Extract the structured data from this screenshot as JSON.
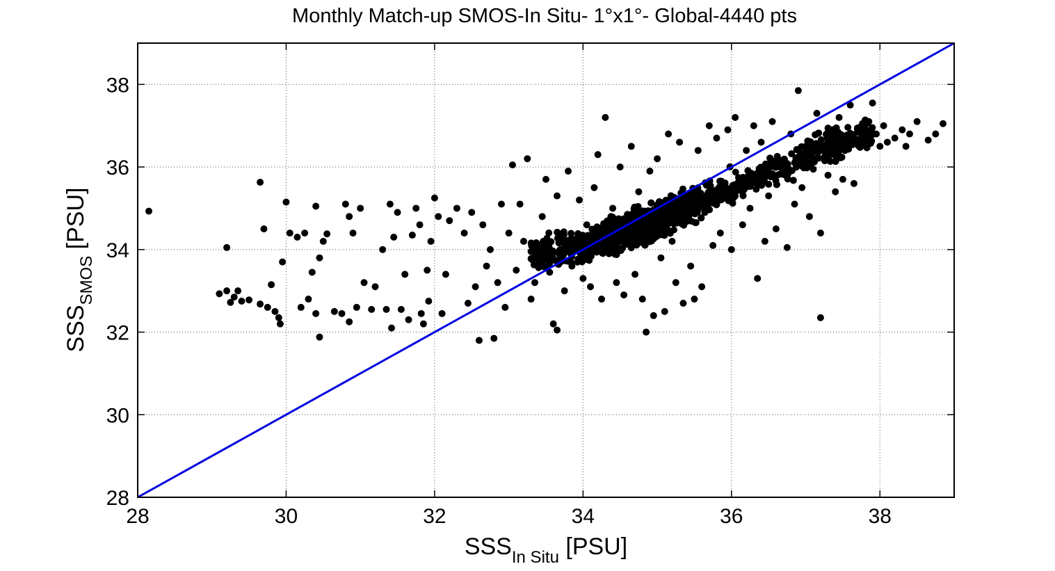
{
  "chart_data": {
    "type": "scatter",
    "title": "Monthly Match-up SMOS-In Situ- 1°x1°- Global-4440 pts",
    "xlabel": {
      "main": "SSS",
      "sub": "In Situ",
      "unit": " [PSU]"
    },
    "ylabel": {
      "main": "SSS",
      "sub": "SMOS",
      "unit": " [PSU]"
    },
    "xlim": [
      28,
      39
    ],
    "ylim": [
      28,
      39
    ],
    "xticks": [
      28,
      30,
      32,
      34,
      36,
      38
    ],
    "yticks": [
      28,
      30,
      32,
      34,
      36,
      38
    ],
    "grid": true,
    "grid_style": "dotted",
    "point_color": "#000000",
    "point_count_total": 4440,
    "series": [
      {
        "type": "scatter",
        "points": [
          [
            28.15,
            34.93
          ],
          [
            29.1,
            32.93
          ],
          [
            29.2,
            34.05
          ],
          [
            29.2,
            33.0
          ],
          [
            29.25,
            32.72
          ],
          [
            29.3,
            32.85
          ],
          [
            29.35,
            33.0
          ],
          [
            29.4,
            32.75
          ],
          [
            29.5,
            32.78
          ],
          [
            29.65,
            32.68
          ],
          [
            29.65,
            35.63
          ],
          [
            29.7,
            34.5
          ],
          [
            29.75,
            32.6
          ],
          [
            29.8,
            33.15
          ],
          [
            29.85,
            32.5
          ],
          [
            29.9,
            32.35
          ],
          [
            29.92,
            32.2
          ],
          [
            29.95,
            33.7
          ],
          [
            30.0,
            35.15
          ],
          [
            30.05,
            34.4
          ],
          [
            30.15,
            34.3
          ],
          [
            30.2,
            32.6
          ],
          [
            30.25,
            34.4
          ],
          [
            30.3,
            32.8
          ],
          [
            30.35,
            33.45
          ],
          [
            30.4,
            35.05
          ],
          [
            30.4,
            32.45
          ],
          [
            30.45,
            33.8
          ],
          [
            30.5,
            34.2
          ],
          [
            30.55,
            34.38
          ],
          [
            30.45,
            31.88
          ],
          [
            30.65,
            32.5
          ],
          [
            30.75,
            32.45
          ],
          [
            30.85,
            32.25
          ],
          [
            30.8,
            35.1
          ],
          [
            30.85,
            34.8
          ],
          [
            30.9,
            34.4
          ],
          [
            30.95,
            32.6
          ],
          [
            31.0,
            35.0
          ],
          [
            31.05,
            33.2
          ],
          [
            31.15,
            32.55
          ],
          [
            31.2,
            33.1
          ],
          [
            31.3,
            34.0
          ],
          [
            31.35,
            32.55
          ],
          [
            31.4,
            35.1
          ],
          [
            31.45,
            34.3
          ],
          [
            31.42,
            32.1
          ],
          [
            31.5,
            34.9
          ],
          [
            31.55,
            32.55
          ],
          [
            31.6,
            33.4
          ],
          [
            31.65,
            32.3
          ],
          [
            31.7,
            34.35
          ],
          [
            31.75,
            35.0
          ],
          [
            31.8,
            34.6
          ],
          [
            31.82,
            32.45
          ],
          [
            31.85,
            32.2
          ],
          [
            31.9,
            33.5
          ],
          [
            31.92,
            32.75
          ],
          [
            31.95,
            34.2
          ],
          [
            32.0,
            35.25
          ],
          [
            32.05,
            34.8
          ],
          [
            32.1,
            32.45
          ],
          [
            32.15,
            33.4
          ],
          [
            32.2,
            34.7
          ],
          [
            32.3,
            35.0
          ],
          [
            32.4,
            34.4
          ],
          [
            32.45,
            32.7
          ],
          [
            32.5,
            34.9
          ],
          [
            32.55,
            33.1
          ],
          [
            32.6,
            31.8
          ],
          [
            32.65,
            34.6
          ],
          [
            32.7,
            33.6
          ],
          [
            32.75,
            34.0
          ],
          [
            32.8,
            31.85
          ],
          [
            32.85,
            33.2
          ],
          [
            32.9,
            35.1
          ],
          [
            32.95,
            32.6
          ],
          [
            33.0,
            34.4
          ],
          [
            33.05,
            36.05
          ],
          [
            33.1,
            33.5
          ],
          [
            33.15,
            35.1
          ],
          [
            33.2,
            34.2
          ],
          [
            33.25,
            36.2
          ],
          [
            33.3,
            32.8
          ],
          [
            33.35,
            33.2
          ],
          [
            33.45,
            34.8
          ],
          [
            33.5,
            35.7
          ],
          [
            33.55,
            33.45
          ],
          [
            33.6,
            32.2
          ],
          [
            33.65,
            35.3
          ],
          [
            33.65,
            32.05
          ],
          [
            33.7,
            34.0
          ],
          [
            33.75,
            33.0
          ],
          [
            33.8,
            35.9
          ],
          [
            33.85,
            33.6
          ],
          [
            33.9,
            34.2
          ],
          [
            33.95,
            35.2
          ],
          [
            34.0,
            33.3
          ],
          [
            34.05,
            34.6
          ],
          [
            34.1,
            33.1
          ],
          [
            34.15,
            35.5
          ],
          [
            34.2,
            36.3
          ],
          [
            34.25,
            32.8
          ],
          [
            34.3,
            37.2
          ],
          [
            34.35,
            33.9
          ],
          [
            34.4,
            35.0
          ],
          [
            34.45,
            33.2
          ],
          [
            34.5,
            36.0
          ],
          [
            34.55,
            32.9
          ],
          [
            34.6,
            34.6
          ],
          [
            34.65,
            36.5
          ],
          [
            34.7,
            33.4
          ],
          [
            34.75,
            35.4
          ],
          [
            34.8,
            32.8
          ],
          [
            34.85,
            32.0
          ],
          [
            34.9,
            35.9
          ],
          [
            34.95,
            32.4
          ],
          [
            35.0,
            36.2
          ],
          [
            35.05,
            33.8
          ],
          [
            35.1,
            32.5
          ],
          [
            35.15,
            36.8
          ],
          [
            35.2,
            34.2
          ],
          [
            35.25,
            33.2
          ],
          [
            35.3,
            36.6
          ],
          [
            35.35,
            32.7
          ],
          [
            35.4,
            35.2
          ],
          [
            35.45,
            33.6
          ],
          [
            35.5,
            32.8
          ],
          [
            35.55,
            36.4
          ],
          [
            35.6,
            33.1
          ],
          [
            35.65,
            35.0
          ],
          [
            35.7,
            37.0
          ],
          [
            35.75,
            34.1
          ],
          [
            35.8,
            36.7
          ],
          [
            35.85,
            34.4
          ],
          [
            35.9,
            35.3
          ],
          [
            35.95,
            36.9
          ],
          [
            36.0,
            34.0
          ],
          [
            36.05,
            37.2
          ],
          [
            36.1,
            35.6
          ],
          [
            36.15,
            34.6
          ],
          [
            36.2,
            36.4
          ],
          [
            36.25,
            35.0
          ],
          [
            36.3,
            37.0
          ],
          [
            36.35,
            33.3
          ],
          [
            36.4,
            36.6
          ],
          [
            36.45,
            34.2
          ],
          [
            36.5,
            35.3
          ],
          [
            36.55,
            37.1
          ],
          [
            36.6,
            34.5
          ],
          [
            36.65,
            36.0
          ],
          [
            36.7,
            35.9
          ],
          [
            36.75,
            34.05
          ],
          [
            36.8,
            36.8
          ],
          [
            36.85,
            35.1
          ],
          [
            36.9,
            37.85
          ],
          [
            36.95,
            35.5
          ],
          [
            37.0,
            36.5
          ],
          [
            37.05,
            34.8
          ],
          [
            37.1,
            36.2
          ],
          [
            37.15,
            37.3
          ],
          [
            37.2,
            34.4
          ],
          [
            37.2,
            32.35
          ],
          [
            37.3,
            35.8
          ],
          [
            37.35,
            36.9
          ],
          [
            37.4,
            35.4
          ],
          [
            37.45,
            37.2
          ],
          [
            37.5,
            35.7
          ],
          [
            37.55,
            36.6
          ],
          [
            37.6,
            37.5
          ],
          [
            37.65,
            35.6
          ],
          [
            37.7,
            36.9
          ],
          [
            37.8,
            36.6
          ],
          [
            37.85,
            37.1
          ],
          [
            37.9,
            37.55
          ],
          [
            37.95,
            36.8
          ],
          [
            38.0,
            36.5
          ],
          [
            38.05,
            37.0
          ],
          [
            38.1,
            36.6
          ],
          [
            38.2,
            36.7
          ],
          [
            38.3,
            36.9
          ],
          [
            38.35,
            36.5
          ],
          [
            38.4,
            36.8
          ],
          [
            38.5,
            37.1
          ],
          [
            38.65,
            36.65
          ],
          [
            38.75,
            36.8
          ],
          [
            38.85,
            37.05
          ]
        ],
        "cloud": {
          "description_free": true,
          "center_line": [
            [
              33.2,
              33.9
            ],
            [
              34.0,
              34.1
            ],
            [
              35.0,
              34.7
            ],
            [
              36.0,
              35.5
            ],
            [
              37.0,
              36.3
            ],
            [
              37.9,
              36.9
            ]
          ],
          "spread": 0.45
        }
      }
    ],
    "reference_line": {
      "from": [
        28,
        28
      ],
      "to": [
        39,
        39
      ],
      "color": "#0000e0"
    }
  }
}
